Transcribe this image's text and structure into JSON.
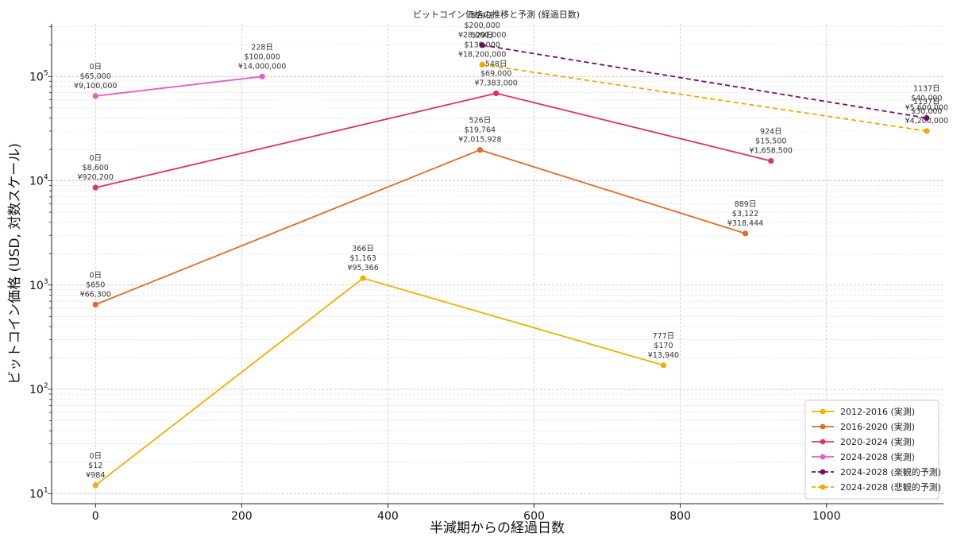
{
  "chart_data": {
    "type": "line",
    "title": "ビットコイン価格の推移と予測 (経過日数)",
    "xlabel": "半減期からの経過日数",
    "ylabel": "ビットコイン価格 (USD, 対数スケール)",
    "xlim": [
      -60,
      1160
    ],
    "ylim": [
      8,
      320000
    ],
    "yscale": "log",
    "grid": true,
    "legend_position": "bottom-right",
    "x_ticks": [
      "0",
      "200",
      "400",
      "600",
      "800",
      "1000"
    ],
    "x_tick_values": [
      0,
      200,
      400,
      600,
      800,
      1000
    ],
    "y_ticks": [
      {
        "value": 10,
        "base": "10",
        "exp": "1"
      },
      {
        "value": 100,
        "base": "10",
        "exp": "2"
      },
      {
        "value": 1000,
        "base": "10",
        "exp": "3"
      },
      {
        "value": 10000,
        "base": "10",
        "exp": "4"
      },
      {
        "value": 100000,
        "base": "10",
        "exp": "5"
      }
    ],
    "series": [
      {
        "name": "2012-2016 (実測)",
        "color": "#f0b000",
        "dashed": false,
        "points": [
          {
            "x": 0,
            "y": 12,
            "labels": [
              "0日",
              "$12",
              "¥984"
            ]
          },
          {
            "x": 366,
            "y": 1163,
            "labels": [
              "366日",
              "$1,163",
              "¥95,366"
            ]
          },
          {
            "x": 777,
            "y": 170,
            "labels": [
              "777日",
              "$170",
              "¥13,940"
            ]
          }
        ]
      },
      {
        "name": "2016-2020 (実測)",
        "color": "#e06a28",
        "dashed": false,
        "points": [
          {
            "x": 0,
            "y": 650,
            "labels": [
              "0日",
              "$650",
              "¥66,300"
            ]
          },
          {
            "x": 526,
            "y": 19764,
            "labels": [
              "526日",
              "$19,764",
              "¥2,015,928"
            ]
          },
          {
            "x": 889,
            "y": 3122,
            "labels": [
              "889日",
              "$3,122",
              "¥318,444"
            ]
          }
        ]
      },
      {
        "name": "2020-2024 (実測)",
        "color": "#de3654",
        "dashed": false,
        "points": [
          {
            "x": 0,
            "y": 8600,
            "labels": [
              "0日",
              "$8,600",
              "¥920,200"
            ]
          },
          {
            "x": 548,
            "y": 69000,
            "labels": [
              "548日",
              "$69,000",
              "¥7,383,000"
            ]
          },
          {
            "x": 924,
            "y": 15500,
            "labels": [
              "924日",
              "$15,500",
              "¥1,658,500"
            ]
          }
        ]
      },
      {
        "name": "2024-2028 (実測)",
        "color": "#e35fc5",
        "dashed": false,
        "points": [
          {
            "x": 0,
            "y": 65000,
            "labels": [
              "0日",
              "$65,000",
              "¥9,100,000"
            ]
          },
          {
            "x": 228,
            "y": 100000,
            "labels": [
              "228日",
              "$100,000",
              "¥14,000,000"
            ]
          }
        ]
      },
      {
        "name": "2024-2028 (楽観的予測)",
        "color": "#76086e",
        "dashed": true,
        "points": [
          {
            "x": 529,
            "y": 200000,
            "labels": [
              "529日",
              "$200,000",
              "¥28,000,000"
            ]
          },
          {
            "x": 1137,
            "y": 40000,
            "labels": [
              "1137日",
              "$40,000",
              "¥5,600,000"
            ]
          }
        ]
      },
      {
        "name": "2024-2028 (悲観的予測)",
        "color": "#f0a800",
        "dashed": true,
        "points": [
          {
            "x": 529,
            "y": 130000,
            "labels": [
              "529日",
              "$130,000",
              "¥18,200,000"
            ]
          },
          {
            "x": 1137,
            "y": 30000,
            "labels": [
              "1137日",
              "$30,000",
              "¥4,200,000"
            ]
          }
        ]
      }
    ]
  }
}
